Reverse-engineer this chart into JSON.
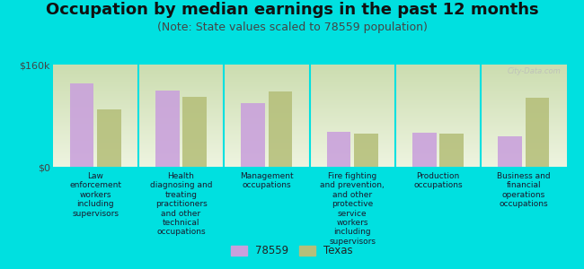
{
  "title": "Occupation by median earnings in the past 12 months",
  "subtitle": "(Note: State values scaled to 78559 population)",
  "categories": [
    "Law\nenforcement\nworkers\nincluding\nsupervisors",
    "Health\ndiagnosing and\ntreating\npractitioners\nand other\ntechnical\noccupations",
    "Management\noccupations",
    "Fire fighting\nand prevention,\nand other\nprotective\nservice\nworkers\nincluding\nsupervisors",
    "Production\noccupations",
    "Business and\nfinancial\noperations\noccupations"
  ],
  "values_78559": [
    130000,
    120000,
    100000,
    55000,
    53000,
    48000
  ],
  "values_texas": [
    90000,
    110000,
    118000,
    52000,
    52000,
    108000
  ],
  "color_78559": "#c9a0dc",
  "color_texas": "#b5bf7a",
  "ylim": [
    0,
    160000
  ],
  "yticks": [
    0,
    160000
  ],
  "ytick_labels": [
    "$0",
    "$160k"
  ],
  "background_color": "#00e0e0",
  "plot_bg_color_top": "#ccddb0",
  "plot_bg_color_bottom": "#eef4e0",
  "watermark": "City-Data.com",
  "legend_label_78559": "78559",
  "legend_label_texas": "Texas",
  "title_fontsize": 13,
  "subtitle_fontsize": 9,
  "label_fontsize": 6.5,
  "legend_fontsize": 8.5
}
